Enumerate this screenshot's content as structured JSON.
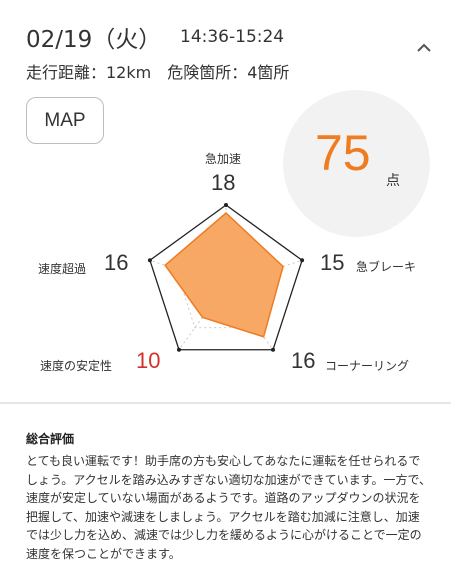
{
  "header": {
    "date": "02/19（火）",
    "time_range": "14:36-15:24",
    "summary": "走行距離：12km　危険箇所：4箇所"
  },
  "map_button_label": "MAP",
  "score": {
    "value": "75",
    "unit": "点"
  },
  "radar": {
    "max": 20,
    "axes": [
      {
        "label": "急加速",
        "value": 18
      },
      {
        "label": "急ブレーキ",
        "value": 15
      },
      {
        "label": "コーナーリング",
        "value": 16
      },
      {
        "label": "速度の安定性",
        "value": 10
      },
      {
        "label": "速度超過",
        "value": 16
      }
    ],
    "fill_color": "#f7a865",
    "stroke_color": "#f07c22",
    "low_value_color": "#d0322a"
  },
  "review": {
    "title": "総合評価",
    "body": "とても良い運転です！助手席の方も安心してあなたに運転を任せられるでしょう。アクセルを踏み込みすぎない適切な加速ができています。一方で、速度が安定していない場面があるようです。道路のアップダウンの状況を把握して、加速や減速をしましょう。アクセルを踏む加減に注意し、加速では少し力を込め、減速では少し力を緩めるように心がけることで一定の速度を保つことができます。"
  }
}
